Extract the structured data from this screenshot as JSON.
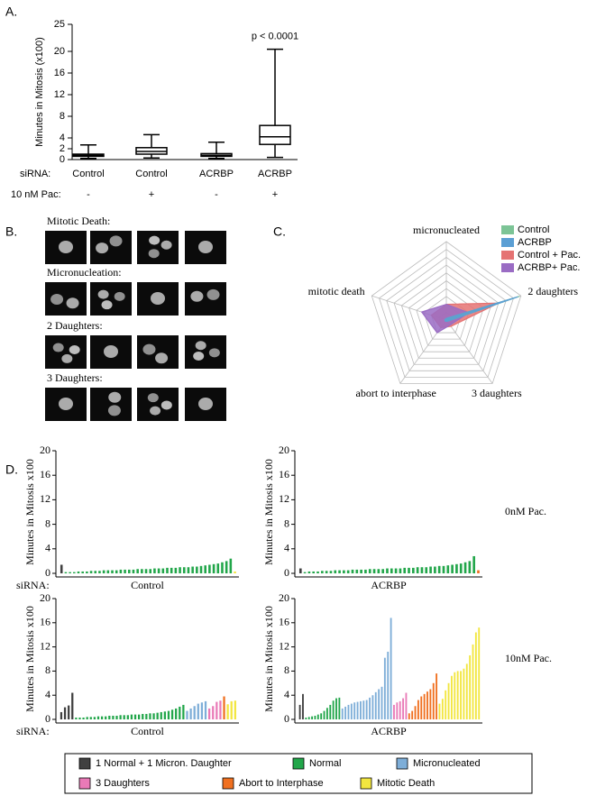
{
  "panels": {
    "a": "A.",
    "b": "B.",
    "c": "C.",
    "d": "D."
  },
  "micrographs": [
    {
      "label": "Mitotic Death:"
    },
    {
      "label": "Micronucleation:"
    },
    {
      "label": "2 Daughters:"
    },
    {
      "label": "3 Daughters:"
    }
  ],
  "legend": [
    {
      "name": "1 Normal + 1 Micron. Daughter",
      "color": "#404040"
    },
    {
      "name": "Normal",
      "color": "#22a64a"
    },
    {
      "name": "Micronucleated",
      "color": "#7eaed8"
    },
    {
      "name": "3 Daughters",
      "color": "#e97ab7"
    },
    {
      "name": "Abort to Interphase",
      "color": "#f07020"
    },
    {
      "name": "Mitotic Death",
      "color": "#f2e640"
    }
  ],
  "chart_data": [
    {
      "type": "box",
      "ylabel": "Minutes in Mitosis (x100)",
      "category_label": "siRNA:",
      "treatment_label": "10 nM Pac:",
      "categories": [
        "Control",
        "Control",
        "ACRBP",
        "ACRBP"
      ],
      "treatments": [
        "-",
        "+",
        "-",
        "+"
      ],
      "boxes": [
        {
          "min": 0.2,
          "q1": 0.6,
          "median": 0.8,
          "q3": 1.0,
          "max": 2.7
        },
        {
          "min": 0.3,
          "q1": 1.0,
          "median": 1.5,
          "q3": 2.2,
          "max": 4.6
        },
        {
          "min": 0.2,
          "q1": 0.6,
          "median": 0.8,
          "q3": 1.1,
          "max": 3.2
        },
        {
          "min": 0.4,
          "q1": 2.8,
          "median": 4.2,
          "q3": 6.3,
          "max": 20.4,
          "label": "p < 0.0001"
        }
      ],
      "ylim": [
        0,
        25
      ],
      "yticks": [
        0,
        2,
        4,
        8,
        12,
        16,
        20,
        25
      ]
    },
    {
      "type": "radar",
      "axes": [
        "micronucleated",
        "2 daughters",
        "3 daughters",
        "abort to interphase",
        "mitotic death"
      ],
      "rlim": [
        0,
        1
      ],
      "rticks": [
        0.1,
        0.2,
        0.3,
        0.4,
        0.5,
        0.6,
        0.7,
        0.8,
        0.9,
        1.0
      ],
      "series": [
        {
          "name": "Control",
          "color": "#7cc496",
          "values": [
            0.02,
            0.98,
            0.02,
            0.02,
            0.02
          ]
        },
        {
          "name": "ACRBP",
          "color": "#5b9fd4",
          "values": [
            0.02,
            0.96,
            0.02,
            0.02,
            0.02
          ]
        },
        {
          "name": "Control + Pac.",
          "color": "#e57373",
          "values": [
            0.2,
            0.7,
            0.1,
            0.12,
            0.2
          ]
        },
        {
          "name": "ACRBP+ Pac.",
          "color": "#9a6cc4",
          "values": [
            0.2,
            0.3,
            0.08,
            0.2,
            0.33
          ]
        }
      ]
    },
    {
      "type": "bar",
      "ylabel": "Minutes in Mitosis x100",
      "xlabel_prefix": "siRNA:",
      "xlabel": "Control",
      "ylim": [
        0,
        20
      ],
      "yticks": [
        0,
        4,
        8,
        12,
        16,
        20
      ],
      "series": [
        {
          "values": [
            1.4
          ]
        },
        {
          "values": [
            0.2,
            0.2,
            0.2,
            0.3,
            0.3,
            0.3,
            0.4,
            0.4,
            0.4,
            0.5,
            0.5,
            0.5,
            0.5,
            0.6,
            0.6,
            0.6,
            0.6,
            0.7,
            0.7,
            0.7,
            0.7,
            0.8,
            0.8,
            0.8,
            0.9,
            0.9,
            0.9,
            1.0,
            1.0,
            1.0,
            1.1,
            1.1,
            1.2,
            1.3,
            1.4,
            1.5,
            1.6,
            1.8,
            2.0,
            2.4
          ]
        },
        {
          "values": []
        },
        {
          "values": []
        },
        {
          "values": []
        },
        {
          "values": [
            0.3
          ]
        }
      ]
    },
    {
      "type": "bar",
      "ylabel": "Minutes in Mitosis x100",
      "xlabel": "ACRBP",
      "annotation": "0nM Pac.",
      "ylim": [
        0,
        20
      ],
      "yticks": [
        0,
        4,
        8,
        12,
        16,
        20
      ],
      "series": [
        {
          "values": [
            0.8
          ]
        },
        {
          "values": [
            0.2,
            0.3,
            0.3,
            0.3,
            0.4,
            0.4,
            0.4,
            0.5,
            0.5,
            0.5,
            0.5,
            0.6,
            0.6,
            0.6,
            0.6,
            0.7,
            0.7,
            0.7,
            0.7,
            0.8,
            0.8,
            0.8,
            0.8,
            0.9,
            0.9,
            0.9,
            1.0,
            1.0,
            1.0,
            1.1,
            1.1,
            1.2,
            1.2,
            1.3,
            1.4,
            1.5,
            1.6,
            1.8,
            2.0,
            2.8
          ]
        },
        {
          "values": []
        },
        {
          "values": []
        },
        {
          "values": [
            0.5
          ]
        },
        {
          "values": []
        }
      ]
    },
    {
      "type": "bar",
      "ylabel": "Minutes in Mitosis x100",
      "xlabel_prefix": "siRNA:",
      "xlabel": "Control",
      "ylim": [
        0,
        20
      ],
      "yticks": [
        0,
        4,
        8,
        12,
        16,
        20
      ],
      "series": [
        {
          "values": [
            1.2,
            2.0,
            2.3,
            4.4
          ]
        },
        {
          "values": [
            0.3,
            0.3,
            0.3,
            0.4,
            0.4,
            0.4,
            0.5,
            0.5,
            0.5,
            0.6,
            0.6,
            0.6,
            0.7,
            0.7,
            0.7,
            0.8,
            0.8,
            0.8,
            0.9,
            0.9,
            1.0,
            1.0,
            1.1,
            1.2,
            1.3,
            1.4,
            1.6,
            1.8,
            2.1,
            2.4
          ]
        },
        {
          "values": [
            1.4,
            1.8,
            2.2,
            2.6,
            2.8,
            3.0
          ]
        },
        {
          "values": [
            1.8,
            2.2,
            2.9,
            3.1
          ]
        },
        {
          "values": [
            3.8
          ]
        },
        {
          "values": [
            2.5,
            3.0,
            3.1
          ]
        }
      ]
    },
    {
      "type": "bar",
      "ylabel": "Minutes in Mitosis x100",
      "xlabel": "ACRBP",
      "annotation": "10nM Pac.",
      "ylim": [
        0,
        20
      ],
      "yticks": [
        0,
        4,
        8,
        12,
        16,
        20
      ],
      "series": [
        {
          "values": [
            2.4,
            4.2
          ]
        },
        {
          "values": [
            0.3,
            0.4,
            0.5,
            0.6,
            0.8,
            1.0,
            1.4,
            1.9,
            2.4,
            3.1,
            3.5,
            3.6
          ]
        },
        {
          "values": [
            1.8,
            2.1,
            2.4,
            2.6,
            2.8,
            2.9,
            3.0,
            3.1,
            3.2,
            3.6,
            4.0,
            4.5,
            5.0,
            5.4,
            10.2,
            11.2,
            16.8
          ]
        },
        {
          "values": [
            2.4,
            2.8,
            3.0,
            3.5,
            4.4
          ]
        },
        {
          "values": [
            1.0,
            1.4,
            2.2,
            3.2,
            3.8,
            4.2,
            4.6,
            5.0,
            6.0,
            7.6
          ]
        },
        {
          "values": [
            2.6,
            3.4,
            4.8,
            6.0,
            7.2,
            7.8,
            8.0,
            8.0,
            8.4,
            9.2,
            10.6,
            12.4,
            14.4,
            15.2
          ]
        }
      ]
    }
  ]
}
